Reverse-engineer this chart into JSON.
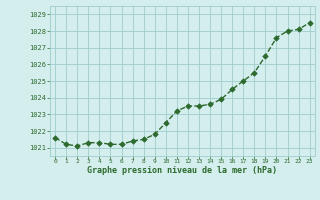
{
  "x": [
    0,
    1,
    2,
    3,
    4,
    5,
    6,
    7,
    8,
    9,
    10,
    11,
    12,
    13,
    14,
    15,
    16,
    17,
    18,
    19,
    20,
    21,
    22,
    23
  ],
  "y": [
    1021.6,
    1021.2,
    1021.1,
    1021.3,
    1021.3,
    1021.2,
    1021.2,
    1021.4,
    1021.5,
    1021.8,
    1022.5,
    1023.2,
    1023.5,
    1023.5,
    1023.6,
    1023.9,
    1024.5,
    1025.0,
    1025.5,
    1026.5,
    1027.6,
    1028.0,
    1028.1,
    1028.5
  ],
  "line_color": "#2d6a2d",
  "marker_color": "#2d6a2d",
  "bg_color": "#d4eeee",
  "grid_color": "#a0cccc",
  "xlabel": "Graphe pression niveau de la mer (hPa)",
  "xlabel_color": "#2d6a2d",
  "tick_color": "#2d6a2d",
  "ylim_min": 1020.5,
  "ylim_max": 1029.5,
  "yticks": [
    1021,
    1022,
    1023,
    1024,
    1025,
    1026,
    1027,
    1028,
    1029
  ],
  "xticks": [
    0,
    1,
    2,
    3,
    4,
    5,
    6,
    7,
    8,
    9,
    10,
    11,
    12,
    13,
    14,
    15,
    16,
    17,
    18,
    19,
    20,
    21,
    22,
    23
  ],
  "line_width": 1.0,
  "marker_size": 2.8,
  "marker_style": "D"
}
